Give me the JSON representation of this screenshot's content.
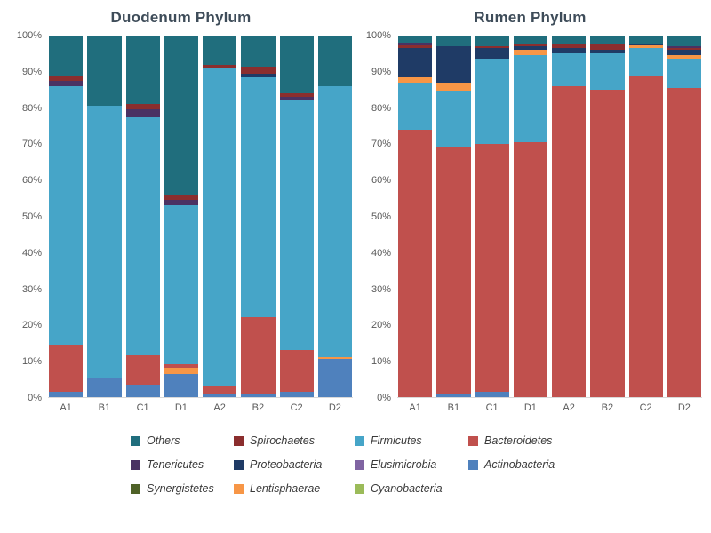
{
  "figure": {
    "background": "#ffffff",
    "title_color": "#3e4c59",
    "tick_color": "#595959"
  },
  "phylum_colors": {
    "Others": "#206e7d",
    "Spirochaetes": "#8b2e2e",
    "Firmicutes": "#46a5c8",
    "Bacteroidetes": "#c0504d",
    "Tenericutes": "#4a3263",
    "Proteobacteria": "#1f3b66",
    "Elusimicrobia": "#8064a2",
    "Actinobacteria": "#4f81bd",
    "Synergistetes": "#4f6228",
    "Lentisphaerae": "#f79646",
    "Cyanobacteria": "#9bbb59"
  },
  "legend": {
    "rows": [
      [
        "Others",
        "Spirochaetes",
        "Firmicutes",
        "Bacteroidetes"
      ],
      [
        "Tenericutes",
        "Proteobacteria",
        "Elusimicrobia",
        "Actinobacteria"
      ],
      [
        "Synergistetes",
        "Lentisphaerae",
        "Cyanobacteria"
      ]
    ]
  },
  "chart_data": [
    {
      "type": "bar",
      "stacked": true,
      "title": "Duodenum Phylum",
      "xlabel": "",
      "ylabel": "",
      "unit": "%",
      "ylim": [
        0,
        100
      ],
      "grid": false,
      "y_ticks": [
        "0%",
        "10%",
        "20%",
        "30%",
        "40%",
        "50%",
        "60%",
        "70%",
        "80%",
        "90%",
        "100%"
      ],
      "categories": [
        "A1",
        "B1",
        "C1",
        "D1",
        "A2",
        "B2",
        "C2",
        "D2"
      ],
      "bars": {
        "A1": [
          [
            "Actinobacteria",
            1.5
          ],
          [
            "Bacteroidetes",
            13
          ],
          [
            "Firmicutes",
            71.5
          ],
          [
            "Tenericutes",
            1.5
          ],
          [
            "Spirochaetes",
            1.5
          ],
          [
            "Others",
            11
          ]
        ],
        "B1": [
          [
            "Actinobacteria",
            5.5
          ],
          [
            "Firmicutes",
            75
          ],
          [
            "Others",
            19.5
          ]
        ],
        "C1": [
          [
            "Actinobacteria",
            3.5
          ],
          [
            "Bacteroidetes",
            8
          ],
          [
            "Firmicutes",
            66
          ],
          [
            "Tenericutes",
            2
          ],
          [
            "Spirochaetes",
            1.5
          ],
          [
            "Others",
            19
          ]
        ],
        "D1": [
          [
            "Actinobacteria",
            6.5
          ],
          [
            "Lentisphaerae",
            1.5
          ],
          [
            "Bacteroidetes",
            1
          ],
          [
            "Firmicutes",
            44
          ],
          [
            "Tenericutes",
            1.5
          ],
          [
            "Spirochaetes",
            1.5
          ],
          [
            "Others",
            44
          ]
        ],
        "A2": [
          [
            "Actinobacteria",
            1
          ],
          [
            "Bacteroidetes",
            2
          ],
          [
            "Firmicutes",
            88
          ],
          [
            "Spirochaetes",
            1
          ],
          [
            "Others",
            8
          ]
        ],
        "B2": [
          [
            "Actinobacteria",
            1
          ],
          [
            "Bacteroidetes",
            21
          ],
          [
            "Firmicutes",
            66.5
          ],
          [
            "Proteobacteria",
            1
          ],
          [
            "Spirochaetes",
            2
          ],
          [
            "Others",
            8.5
          ]
        ],
        "C2": [
          [
            "Actinobacteria",
            1.5
          ],
          [
            "Bacteroidetes",
            11.5
          ],
          [
            "Firmicutes",
            69
          ],
          [
            "Tenericutes",
            1
          ],
          [
            "Spirochaetes",
            1
          ],
          [
            "Others",
            16
          ]
        ],
        "D2": [
          [
            "Actinobacteria",
            10.5
          ],
          [
            "Lentisphaerae",
            0.5
          ],
          [
            "Firmicutes",
            75
          ],
          [
            "Others",
            14
          ]
        ]
      }
    },
    {
      "type": "bar",
      "stacked": true,
      "title": "Rumen Phylum",
      "xlabel": "",
      "ylabel": "",
      "unit": "%",
      "ylim": [
        0,
        100
      ],
      "grid": false,
      "y_ticks": [
        "0%",
        "10%",
        "20%",
        "30%",
        "40%",
        "50%",
        "60%",
        "70%",
        "80%",
        "90%",
        "100%"
      ],
      "categories": [
        "A1",
        "B1",
        "C1",
        "D1",
        "A2",
        "B2",
        "C2",
        "D2"
      ],
      "bars": {
        "A1": [
          [
            "Bacteroidetes",
            74
          ],
          [
            "Firmicutes",
            13
          ],
          [
            "Lentisphaerae",
            1.5
          ],
          [
            "Proteobacteria",
            8
          ],
          [
            "Spirochaetes",
            0.7
          ],
          [
            "Tenericutes",
            0.8
          ],
          [
            "Others",
            2
          ]
        ],
        "B1": [
          [
            "Actinobacteria",
            1
          ],
          [
            "Bacteroidetes",
            68
          ],
          [
            "Firmicutes",
            15.5
          ],
          [
            "Lentisphaerae",
            2.5
          ],
          [
            "Proteobacteria",
            10
          ],
          [
            "Others",
            3
          ]
        ],
        "C1": [
          [
            "Actinobacteria",
            1.5
          ],
          [
            "Bacteroidetes",
            68.5
          ],
          [
            "Firmicutes",
            23.5
          ],
          [
            "Proteobacteria",
            3
          ],
          [
            "Spirochaetes",
            0.5
          ],
          [
            "Others",
            3
          ]
        ],
        "D1": [
          [
            "Bacteroidetes",
            70.5
          ],
          [
            "Firmicutes",
            24
          ],
          [
            "Lentisphaerae",
            1.5
          ],
          [
            "Proteobacteria",
            1
          ],
          [
            "Spirochaetes",
            0.5
          ],
          [
            "Others",
            2.5
          ]
        ],
        "A2": [
          [
            "Bacteroidetes",
            86
          ],
          [
            "Firmicutes",
            9
          ],
          [
            "Proteobacteria",
            1.5
          ],
          [
            "Spirochaetes",
            1
          ],
          [
            "Others",
            2.5
          ]
        ],
        "B2": [
          [
            "Bacteroidetes",
            85
          ],
          [
            "Firmicutes",
            10
          ],
          [
            "Proteobacteria",
            1
          ],
          [
            "Spirochaetes",
            1.5
          ],
          [
            "Others",
            2.5
          ]
        ],
        "C2": [
          [
            "Bacteroidetes",
            89
          ],
          [
            "Firmicutes",
            7.5
          ],
          [
            "Lentisphaerae",
            0.7
          ],
          [
            "Proteobacteria",
            0.3
          ],
          [
            "Others",
            2.5
          ]
        ],
        "D2": [
          [
            "Bacteroidetes",
            85.5
          ],
          [
            "Firmicutes",
            8
          ],
          [
            "Lentisphaerae",
            1
          ],
          [
            "Proteobacteria",
            1.5
          ],
          [
            "Spirochaetes",
            0.5
          ],
          [
            "Tenericutes",
            0.5
          ],
          [
            "Others",
            3
          ]
        ]
      }
    }
  ]
}
